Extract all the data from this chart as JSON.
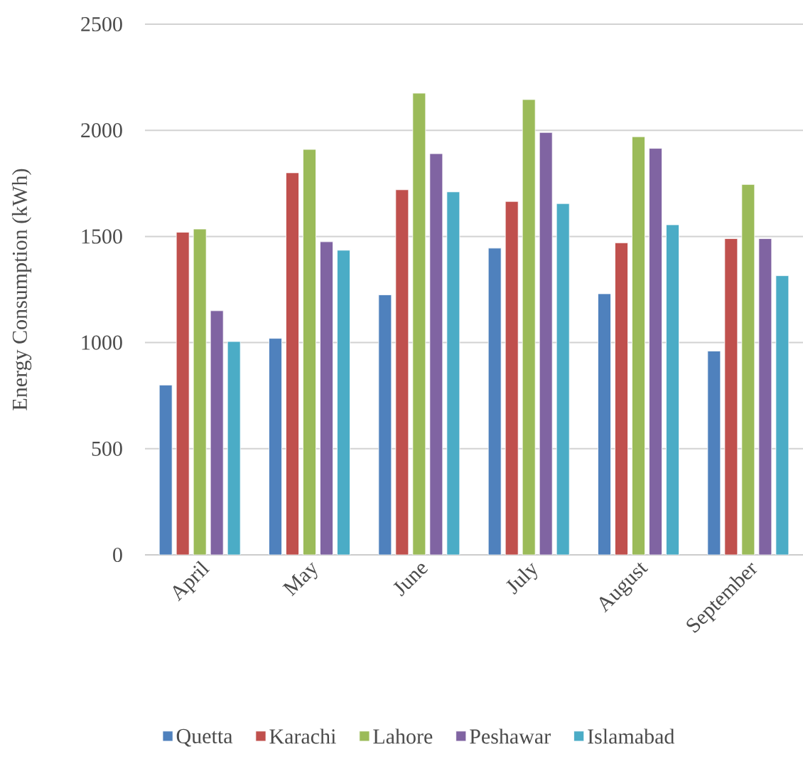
{
  "chart_data": {
    "type": "bar",
    "ylabel": "Energy Consumption (kWh)",
    "categories": [
      "April",
      "May",
      "June",
      "July",
      "August",
      "September"
    ],
    "series": [
      {
        "name": "Quetta",
        "color": "#4f81bd",
        "values": [
          800,
          1020,
          1225,
          1445,
          1230,
          960
        ]
      },
      {
        "name": "Karachi",
        "color": "#c0504d",
        "values": [
          1520,
          1800,
          1720,
          1665,
          1470,
          1490
        ]
      },
      {
        "name": "Lahore",
        "color": "#9bbb59",
        "values": [
          1535,
          1910,
          2175,
          2145,
          1970,
          1745
        ]
      },
      {
        "name": "Peshawar",
        "color": "#8064a2",
        "values": [
          1150,
          1475,
          1890,
          1990,
          1915,
          1490
        ]
      },
      {
        "name": "Islamabad",
        "color": "#4bacc6",
        "values": [
          1005,
          1435,
          1710,
          1655,
          1555,
          1315
        ]
      }
    ],
    "ylim": [
      0,
      2500
    ],
    "yticks": [
      0,
      500,
      1000,
      1500,
      2000,
      2500
    ],
    "grid": "y",
    "legend": "bottom"
  }
}
